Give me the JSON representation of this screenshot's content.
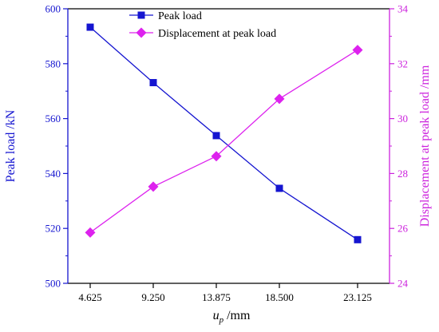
{
  "chart_data": {
    "type": "line",
    "x": [
      4.625,
      9.25,
      13.875,
      18.5,
      23.125
    ],
    "x_tick_labels": [
      "4.625",
      "9.250",
      "13.875",
      "18.500",
      "23.125"
    ],
    "xlabel": {
      "main": "u",
      "sub": "p",
      "suffix": " /mm"
    },
    "ylabel_left": "Peak load /kN",
    "ylabel_right": "Displacement at peak load /mm",
    "ylim_left": [
      500,
      600
    ],
    "yticks_left": [
      500,
      520,
      540,
      560,
      580,
      600
    ],
    "ylim_right": [
      24,
      34
    ],
    "yticks_right": [
      24,
      26,
      28,
      30,
      32,
      34
    ],
    "grid": false,
    "legend_position": "top-center",
    "series": [
      {
        "name": "Peak load",
        "axis": "left",
        "marker": "square",
        "color": "#1515d0",
        "values": [
          593.3,
          573.1,
          553.8,
          534.6,
          515.9
        ]
      },
      {
        "name": "Displacement at peak load",
        "axis": "right",
        "marker": "diamond",
        "color": "#dd22ee",
        "values": [
          25.85,
          27.52,
          28.63,
          30.72,
          32.5
        ]
      }
    ],
    "colors": {
      "left_axis": "#1515d0",
      "right_axis": "#cc22dd",
      "frame": "#000000"
    }
  }
}
